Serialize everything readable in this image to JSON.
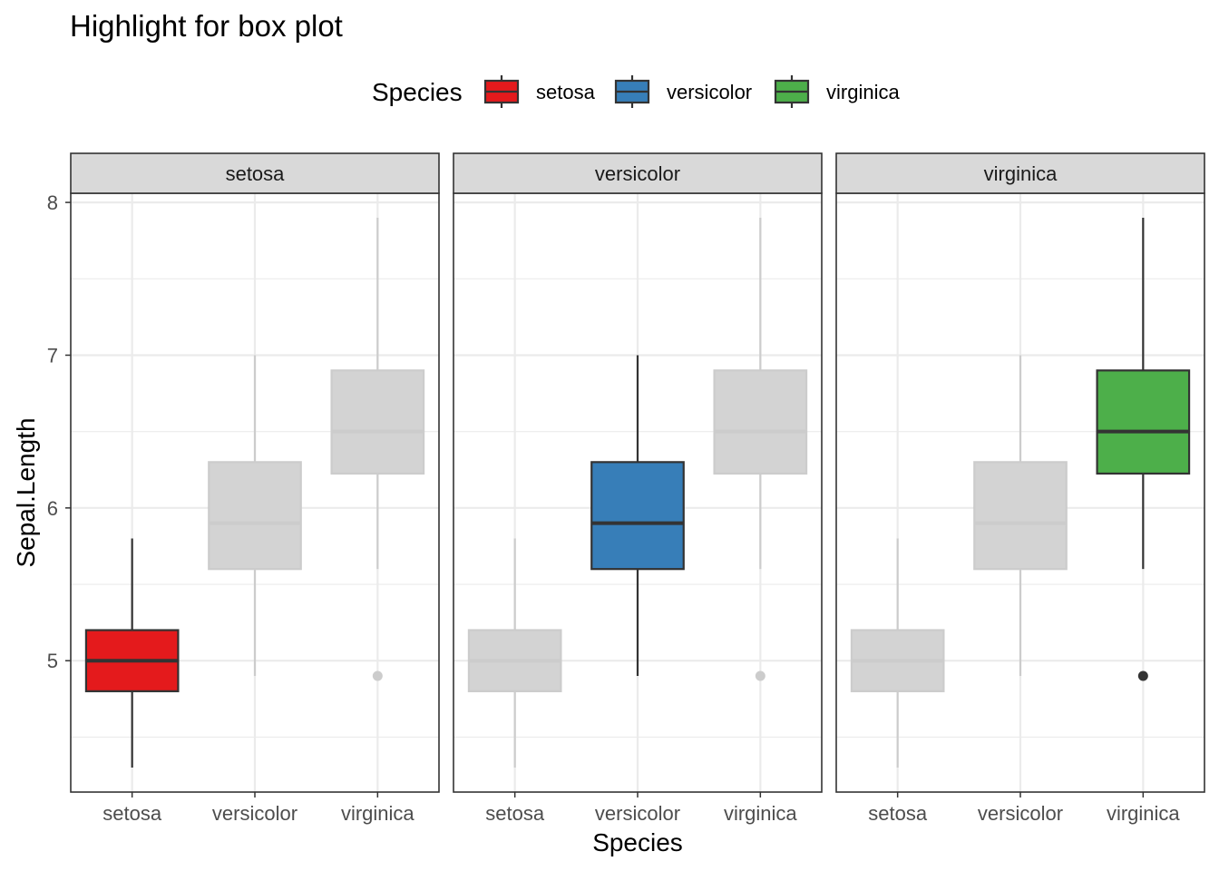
{
  "chart_data": {
    "type": "box",
    "title": "Highlight for box plot",
    "xlabel": "Species",
    "ylabel": "Sepal.Length",
    "ylim": [
      4.14,
      8.06
    ],
    "yticks": [
      5,
      6,
      7,
      8
    ],
    "grid": true,
    "legend": {
      "title": "Species",
      "position": "top",
      "items": [
        {
          "label": "setosa",
          "color": "#E41A1C"
        },
        {
          "label": "versicolor",
          "color": "#377EB8"
        },
        {
          "label": "virginica",
          "color": "#4DAF4A"
        }
      ]
    },
    "categories": [
      "setosa",
      "versicolor",
      "virginica"
    ],
    "facets": [
      "setosa",
      "versicolor",
      "virginica"
    ],
    "highlight": "each facet highlights its own species; other species drawn in grey",
    "dim_color": "#D3D3D3",
    "series": [
      {
        "name": "setosa",
        "color": "#E41A1C",
        "min": 4.3,
        "q1": 4.8,
        "median": 5.0,
        "q3": 5.2,
        "max": 5.8,
        "outliers": []
      },
      {
        "name": "versicolor",
        "color": "#377EB8",
        "min": 4.9,
        "q1": 5.6,
        "median": 5.9,
        "q3": 6.3,
        "max": 7.0,
        "outliers": []
      },
      {
        "name": "virginica",
        "color": "#4DAF4A",
        "min": 5.6,
        "q1": 6.225,
        "median": 6.5,
        "q3": 6.9,
        "max": 7.9,
        "outliers": [
          4.9
        ]
      }
    ]
  }
}
